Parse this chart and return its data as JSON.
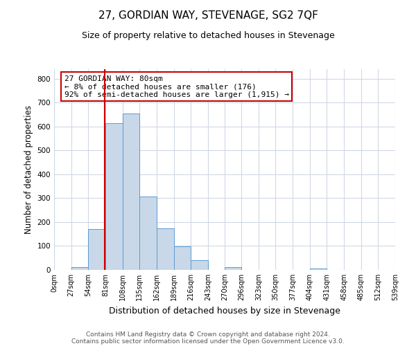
{
  "title": "27, GORDIAN WAY, STEVENAGE, SG2 7QF",
  "subtitle": "Size of property relative to detached houses in Stevenage",
  "bar_edges": [
    0,
    27,
    54,
    81,
    108,
    135,
    162,
    189,
    216,
    243,
    270,
    296,
    323,
    350,
    377,
    404,
    431,
    458,
    485,
    512,
    539
  ],
  "bar_heights": [
    0,
    12,
    170,
    615,
    655,
    308,
    175,
    98,
    42,
    0,
    12,
    0,
    0,
    0,
    0,
    5,
    0,
    0,
    0,
    0
  ],
  "bar_color": "#c8d8e8",
  "bar_edge_color": "#5b9bd5",
  "vline_x": 80,
  "vline_color": "#cc0000",
  "annotation_text": "27 GORDIAN WAY: 80sqm\n← 8% of detached houses are smaller (176)\n92% of semi-detached houses are larger (1,915) →",
  "annotation_box_color": "#ffffff",
  "annotation_box_edge_color": "#cc0000",
  "xlabel": "Distribution of detached houses by size in Stevenage",
  "ylabel": "Number of detached properties",
  "tick_labels": [
    "0sqm",
    "27sqm",
    "54sqm",
    "81sqm",
    "108sqm",
    "135sqm",
    "162sqm",
    "189sqm",
    "216sqm",
    "243sqm",
    "270sqm",
    "296sqm",
    "323sqm",
    "350sqm",
    "377sqm",
    "404sqm",
    "431sqm",
    "458sqm",
    "485sqm",
    "512sqm",
    "539sqm"
  ],
  "ylim": [
    0,
    840
  ],
  "yticks": [
    0,
    100,
    200,
    300,
    400,
    500,
    600,
    700,
    800
  ],
  "footer_line1": "Contains HM Land Registry data © Crown copyright and database right 2024.",
  "footer_line2": "Contains public sector information licensed under the Open Government Licence v3.0.",
  "background_color": "#ffffff",
  "grid_color": "#d0d8e4",
  "title_fontsize": 11,
  "subtitle_fontsize": 9,
  "ylabel_fontsize": 8.5,
  "xlabel_fontsize": 9,
  "tick_fontsize": 7,
  "annotation_fontsize": 8,
  "footer_fontsize": 6.5
}
